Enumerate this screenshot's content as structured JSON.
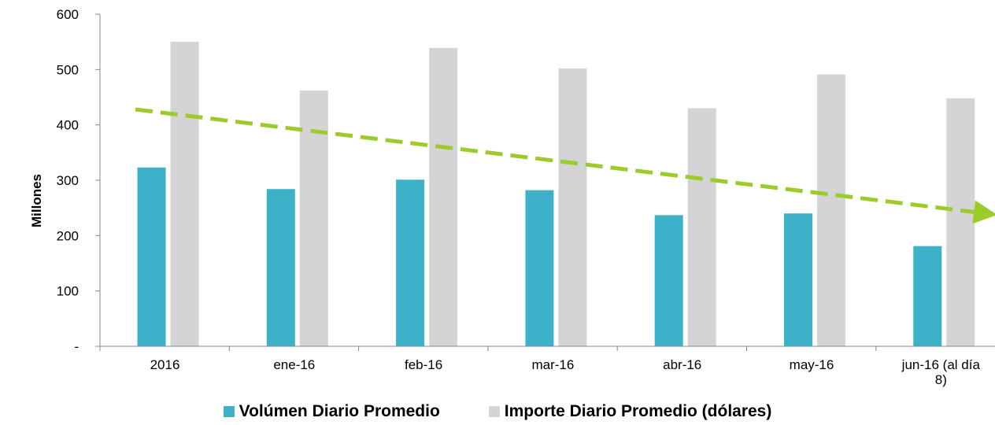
{
  "chart_data": {
    "type": "bar",
    "title": "",
    "xlabel": "",
    "ylabel": "Millones",
    "ylim": [
      0,
      600
    ],
    "yticks": [
      {
        "value": 0,
        "label": "-"
      },
      {
        "value": 100,
        "label": "100"
      },
      {
        "value": 200,
        "label": "200"
      },
      {
        "value": 300,
        "label": "300"
      },
      {
        "value": 400,
        "label": "400"
      },
      {
        "value": 500,
        "label": "500"
      },
      {
        "value": 600,
        "label": "600"
      }
    ],
    "categories": [
      "2016",
      "ene-16",
      "feb-16",
      "mar-16",
      "abr-16",
      "may-16",
      "jun-16 (al día 8)"
    ],
    "category_label_lines": [
      [
        "2016"
      ],
      [
        "ene-16"
      ],
      [
        "feb-16"
      ],
      [
        "mar-16"
      ],
      [
        "abr-16"
      ],
      [
        "may-16"
      ],
      [
        "jun-16 (al día",
        "8)"
      ]
    ],
    "series": [
      {
        "name": "Volúmen Diario Promedio",
        "color": "#3cb1c8",
        "values": [
          323,
          284,
          301,
          282,
          237,
          240,
          181
        ]
      },
      {
        "name": "Importe Diario  Promedio (dólares)",
        "color": "#d4d4d6",
        "values": [
          550,
          462,
          539,
          502,
          430,
          491,
          448
        ]
      }
    ],
    "trendline": {
      "color": "#9ccb2c",
      "style": "dashed-arrow",
      "start_value": 428,
      "end_value": 240
    },
    "legend_position": "bottom",
    "grid": false
  }
}
